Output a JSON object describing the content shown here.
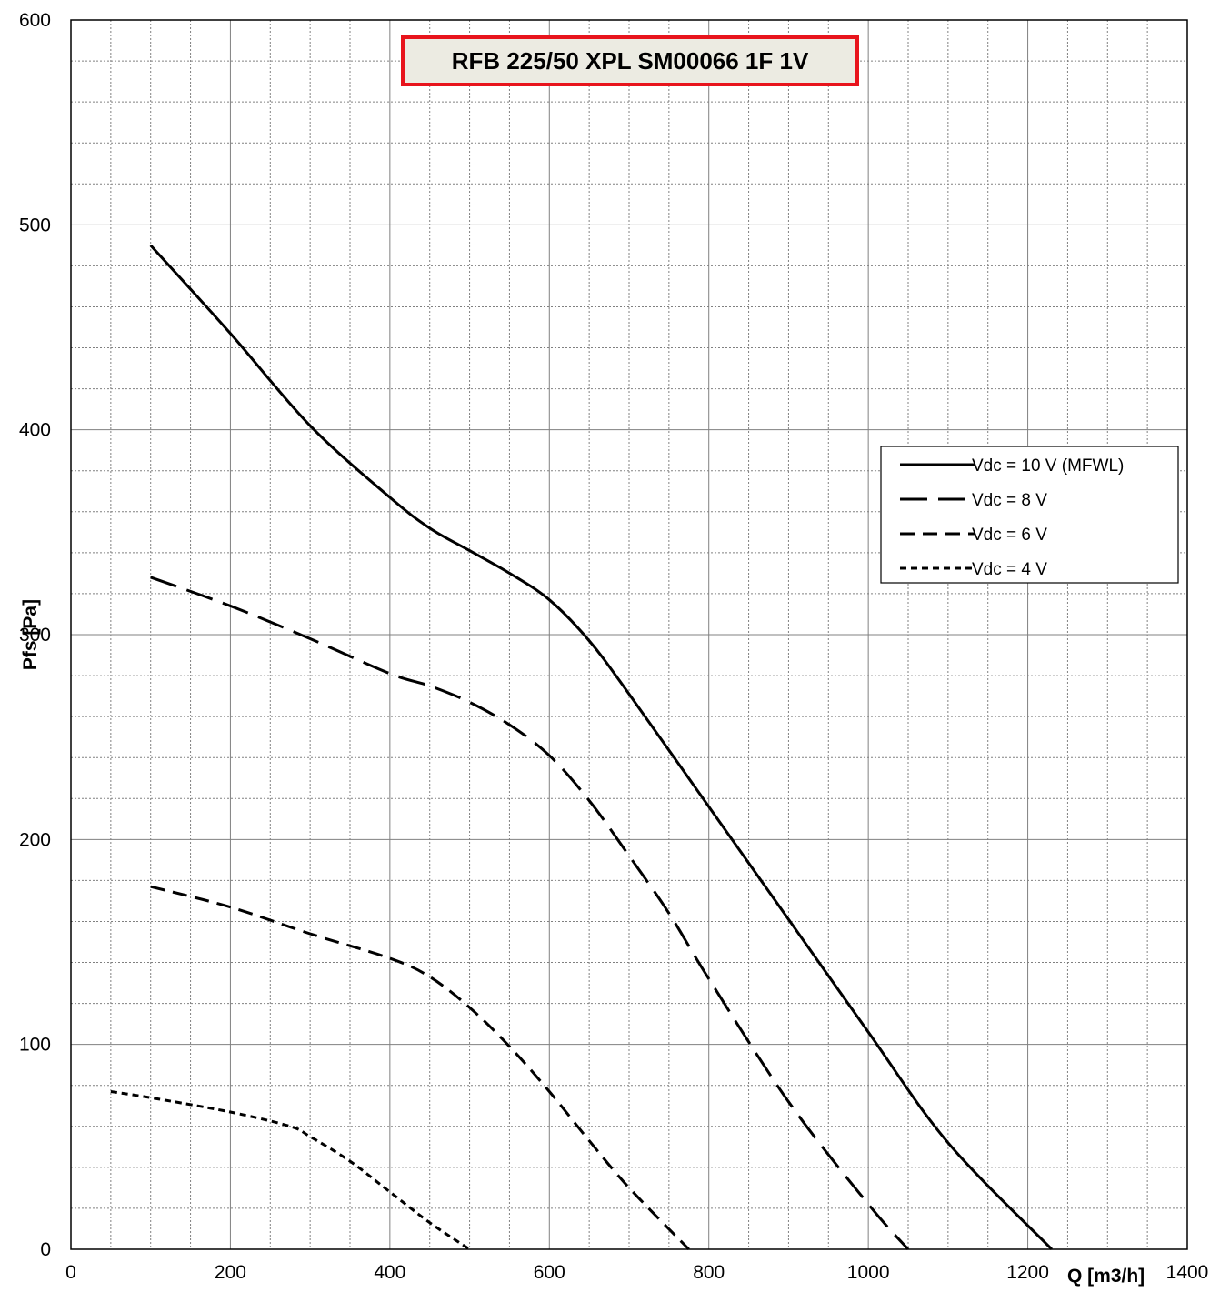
{
  "chart_data": {
    "type": "line",
    "title": "RFB 225/50 XPL SM00066 1F 1V",
    "xlabel": "Q [m3/h]",
    "ylabel": "Pfs [Pa]",
    "xlim": [
      0,
      1400
    ],
    "ylim": [
      0,
      600
    ],
    "x_ticks": [
      "0",
      "200",
      "400",
      "600",
      "800",
      "1000",
      "1200",
      "1400"
    ],
    "y_ticks": [
      "0",
      "100",
      "200",
      "300",
      "400",
      "500",
      "600"
    ],
    "grid": true,
    "legend_position": "right",
    "colors": {
      "line": "#000000",
      "title_border": "#e8141c",
      "title_fill": "#ecebe2",
      "grid": "#808080"
    },
    "series": [
      {
        "name": "Vdc = 10 V (MFWL)",
        "dash": "solid",
        "x": [
          100,
          200,
          300,
          400,
          450,
          500,
          550,
          600,
          650,
          700,
          800,
          900,
          1000,
          1100,
          1230
        ],
        "y": [
          490,
          447,
          402,
          367,
          352,
          341,
          330,
          317,
          297,
          271,
          216,
          161,
          106,
          52,
          0
        ]
      },
      {
        "name": "Vdc = 8 V",
        "dash": "long",
        "x": [
          100,
          200,
          300,
          400,
          450,
          500,
          550,
          600,
          650,
          700,
          750,
          800,
          900,
          1000,
          1050
        ],
        "y": [
          328,
          314,
          298,
          281,
          275,
          267,
          256,
          241,
          219,
          192,
          164,
          132,
          72,
          22,
          0
        ]
      },
      {
        "name": "Vdc = 6 V",
        "dash": "medium",
        "x": [
          100,
          200,
          300,
          400,
          450,
          500,
          550,
          600,
          650,
          700,
          775
        ],
        "y": [
          177,
          167,
          154,
          142,
          133,
          118,
          99,
          77,
          53,
          30,
          0
        ]
      },
      {
        "name": "Vdc = 4 V",
        "dash": "short",
        "x": [
          50,
          100,
          200,
          275,
          300,
          350,
          400,
          450,
          500
        ],
        "y": [
          77,
          74,
          67,
          60,
          55,
          43,
          28,
          13,
          0
        ]
      }
    ]
  }
}
